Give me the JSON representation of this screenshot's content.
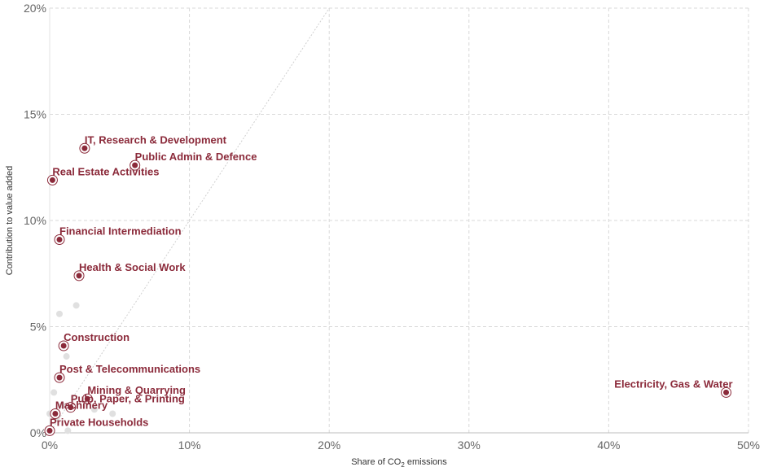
{
  "chart_data": {
    "type": "scatter",
    "xlabel_prefix": "Share of CO",
    "xlabel_sub": "2",
    "xlabel_suffix": " emissions",
    "ylabel": "Contribution to value added",
    "xlim": [
      0,
      50
    ],
    "ylim": [
      0,
      20
    ],
    "x_ticks": [
      0,
      10,
      20,
      30,
      40,
      50
    ],
    "y_ticks": [
      0,
      5,
      10,
      15,
      20
    ],
    "x_tick_labels": [
      "0%",
      "10%",
      "20%",
      "30%",
      "40%",
      "50%"
    ],
    "y_tick_labels": [
      "0%",
      "5%",
      "10%",
      "15%",
      "20%"
    ],
    "grid": true,
    "reference_line": {
      "from": [
        0,
        0
      ],
      "to": [
        20,
        20
      ]
    },
    "highlight_color": "#8b2a3a",
    "background_color": "#e0e0e0",
    "highlighted": [
      {
        "label": "IT, Research & Development",
        "x": 2.5,
        "y": 13.4
      },
      {
        "label": "Public Admin & Defence",
        "x": 6.1,
        "y": 12.6
      },
      {
        "label": "Real Estate Activities",
        "x": 0.2,
        "y": 11.9
      },
      {
        "label": "Financial Intermediation",
        "x": 0.7,
        "y": 9.1
      },
      {
        "label": "Health & Social Work",
        "x": 2.1,
        "y": 7.4
      },
      {
        "label": "Construction",
        "x": 1.0,
        "y": 4.1
      },
      {
        "label": "Post & Telecommunications",
        "x": 0.7,
        "y": 2.6
      },
      {
        "label": "Mining & Quarrying",
        "x": 2.7,
        "y": 1.6
      },
      {
        "label": "Pulp, Paper, & Printing",
        "x": 1.5,
        "y": 1.2
      },
      {
        "label": "Machinery",
        "x": 0.4,
        "y": 0.9
      },
      {
        "label": "Private Households",
        "x": 0.0,
        "y": 0.1
      },
      {
        "label": "Electricity, Gas & Water",
        "x": 48.4,
        "y": 1.9
      }
    ],
    "background": [
      {
        "x": 0.7,
        "y": 5.6
      },
      {
        "x": 1.9,
        "y": 6.0
      },
      {
        "x": 1.2,
        "y": 3.6
      },
      {
        "x": 0.3,
        "y": 1.9
      },
      {
        "x": 4.5,
        "y": 0.9
      },
      {
        "x": 1.3,
        "y": 0.1
      },
      {
        "x": 0.0,
        "y": 0.9
      },
      {
        "x": 0.5,
        "y": 0.7
      },
      {
        "x": 0.9,
        "y": 1.3
      },
      {
        "x": 3.2,
        "y": 1.1
      }
    ]
  }
}
